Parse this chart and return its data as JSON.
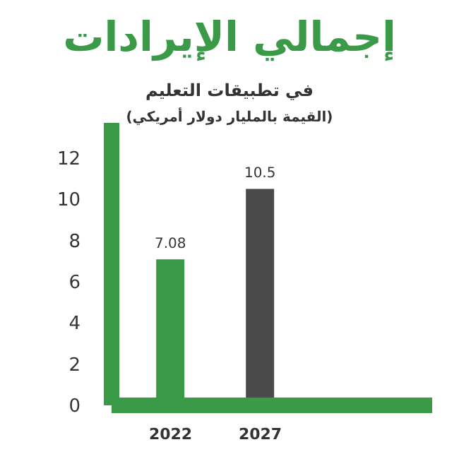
{
  "chart_data": {
    "type": "bar",
    "title": "إجمالي الإيرادات",
    "subtitle": "في تطبيقات التعليم",
    "annotations": [
      "(القيمة بالمليار دولار أمريكي)"
    ],
    "categories": [
      "2022",
      "2027"
    ],
    "values": [
      7.08,
      10.5
    ],
    "colors": [
      "#3a9a47",
      "#4a4a4a"
    ],
    "ylim": [
      0,
      13.7
    ],
    "yticks": [
      0,
      2,
      4,
      6,
      8,
      10,
      12
    ],
    "data_labels": true
  }
}
